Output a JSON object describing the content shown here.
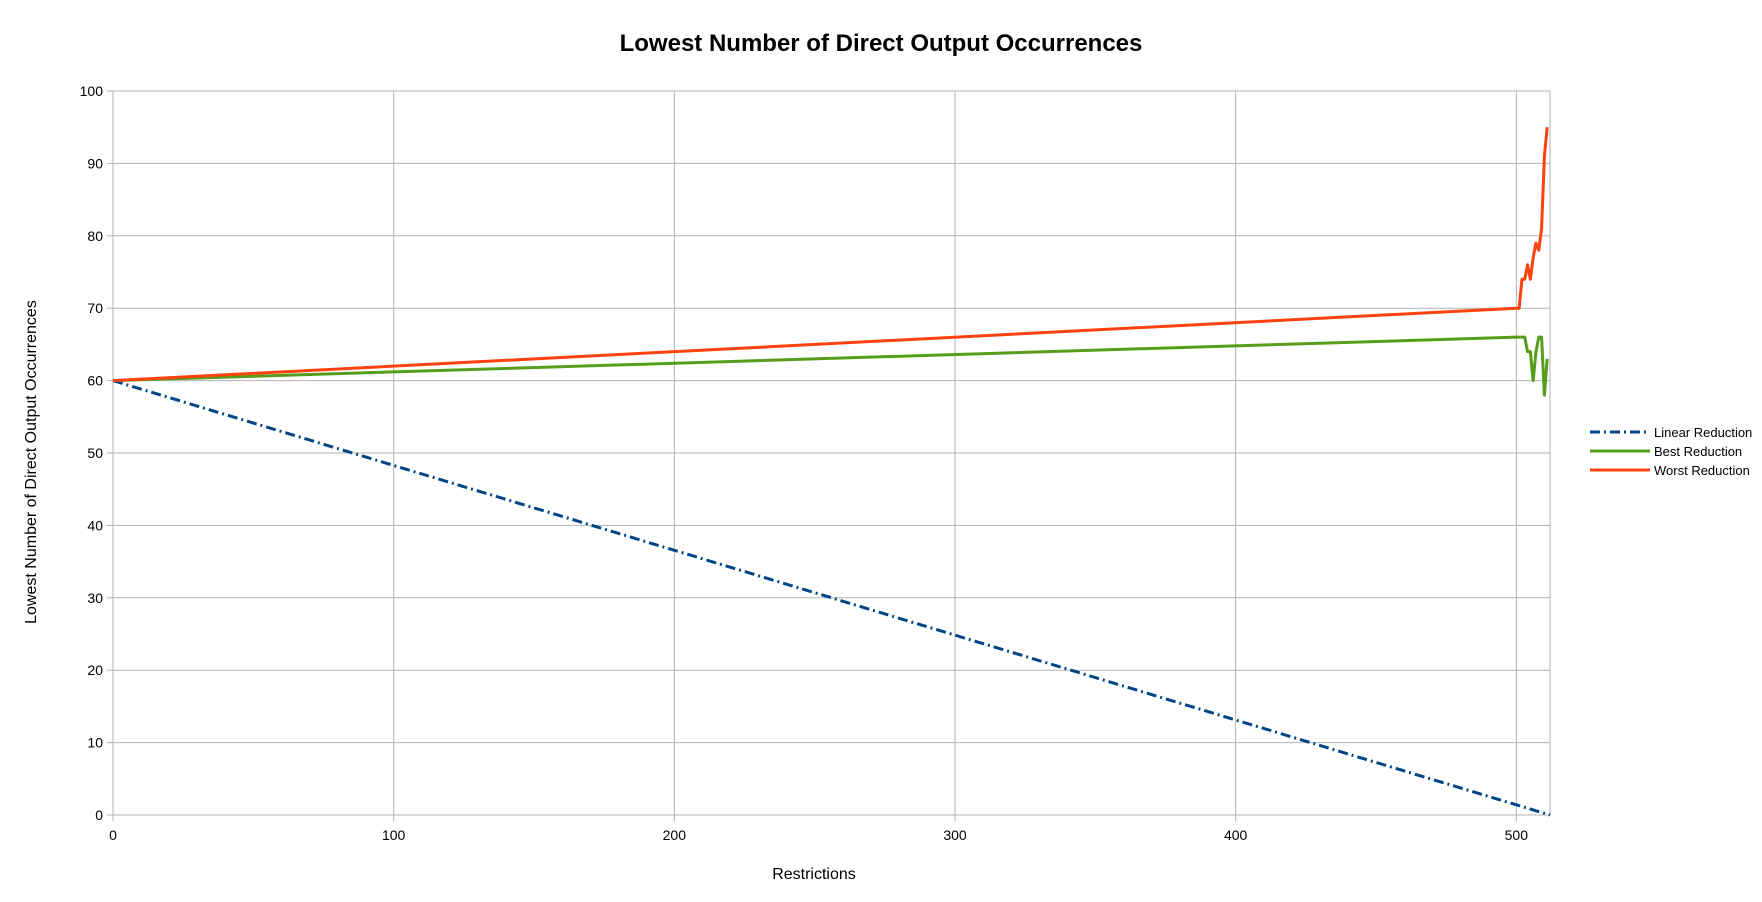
{
  "chart_data": {
    "type": "line",
    "title": "Lowest Number of Direct Output Occurrences",
    "xlabel": "Restrictions",
    "ylabel": "Lowest Number of Direct Output Occurrences",
    "xlim": [
      0,
      512
    ],
    "ylim": [
      0,
      100
    ],
    "xticks": [
      0,
      100,
      200,
      300,
      400,
      500
    ],
    "yticks": [
      0,
      10,
      20,
      30,
      40,
      50,
      60,
      70,
      80,
      90,
      100
    ],
    "grid": true,
    "legend_position": "right",
    "series": [
      {
        "name": "Linear Reduction",
        "color": "#004586",
        "style": "dash-dot",
        "points": [
          [
            0,
            60
          ],
          [
            512,
            0
          ]
        ]
      },
      {
        "name": "Best Reduction",
        "color": "#579d1c",
        "style": "solid",
        "points": [
          [
            0,
            60
          ],
          [
            500,
            66
          ],
          [
            502,
            66
          ],
          [
            503,
            66
          ],
          [
            504,
            64
          ],
          [
            505,
            64
          ],
          [
            506,
            60
          ],
          [
            507,
            64
          ],
          [
            508,
            66
          ],
          [
            509,
            66
          ],
          [
            510,
            58
          ],
          [
            511,
            63
          ]
        ]
      },
      {
        "name": "Worst Reduction",
        "color": "#ff420e",
        "style": "solid",
        "points": [
          [
            0,
            60
          ],
          [
            500,
            70
          ],
          [
            501,
            70
          ],
          [
            502,
            74
          ],
          [
            503,
            74
          ],
          [
            504,
            76
          ],
          [
            505,
            74
          ],
          [
            506,
            77
          ],
          [
            507,
            79
          ],
          [
            508,
            78
          ],
          [
            509,
            81
          ],
          [
            510,
            91
          ],
          [
            511,
            95
          ]
        ]
      }
    ]
  }
}
